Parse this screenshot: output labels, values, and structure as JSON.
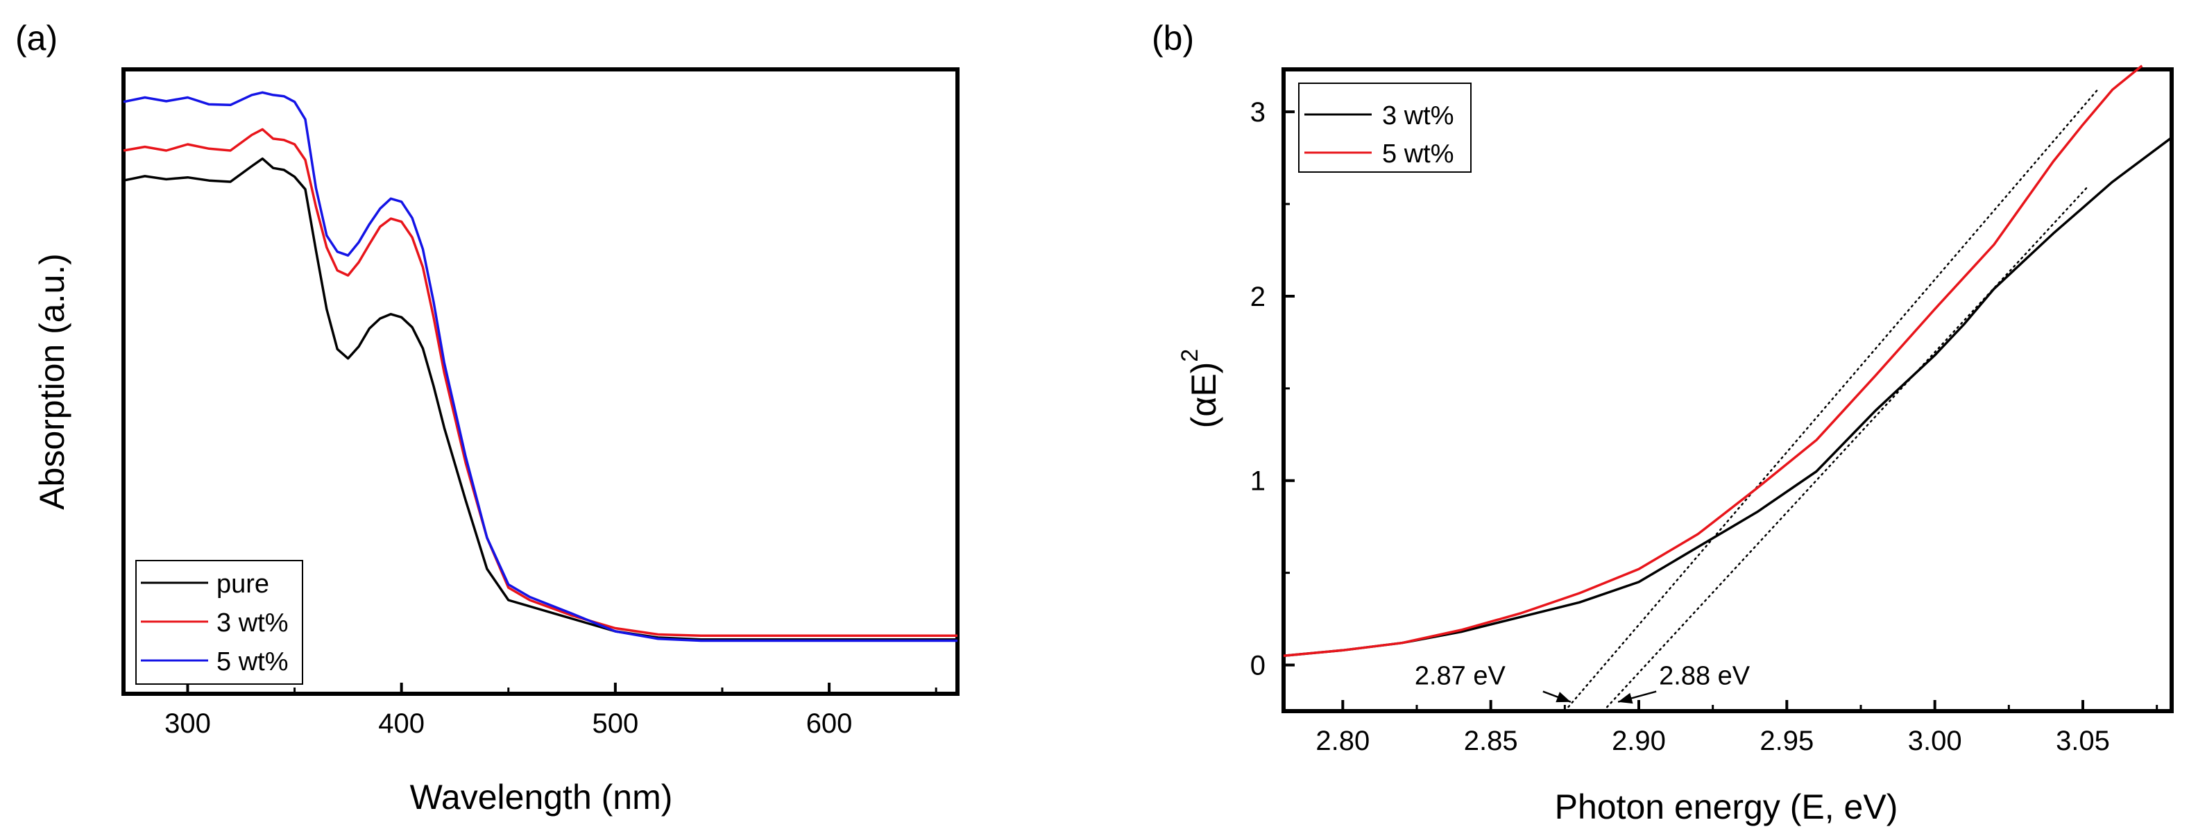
{
  "chart_data": [
    {
      "panel_label": "(a)",
      "type": "line",
      "xlabel": "Wavelength (nm)",
      "ylabel": "Absorption (a.u.)",
      "xlim": [
        270,
        660
      ],
      "ylim": [
        0,
        1
      ],
      "x_ticks": [
        300,
        400,
        500,
        600
      ],
      "x_tick_labels": [
        "300",
        "400",
        "500",
        "600"
      ],
      "y_ticks_labeled": false,
      "legend_position": "bottom-left",
      "series": [
        {
          "name": "pure",
          "color": "#000000",
          "x": [
            270,
            280,
            290,
            300,
            310,
            320,
            330,
            335,
            340,
            345,
            350,
            355,
            360,
            365,
            370,
            375,
            380,
            385,
            390,
            395,
            400,
            405,
            410,
            415,
            420,
            430,
            440,
            450,
            460,
            480,
            500,
            520,
            540,
            560,
            600,
            660
          ],
          "y": [
            0.822,
            0.829,
            0.824,
            0.827,
            0.822,
            0.82,
            0.845,
            0.857,
            0.842,
            0.839,
            0.828,
            0.808,
            0.71,
            0.616,
            0.552,
            0.537,
            0.556,
            0.585,
            0.601,
            0.608,
            0.603,
            0.587,
            0.553,
            0.493,
            0.426,
            0.31,
            0.2,
            0.15,
            0.14,
            0.12,
            0.1,
            0.09,
            0.087,
            0.087,
            0.087,
            0.087
          ]
        },
        {
          "name": "3 wt%",
          "color": "#e8151b",
          "x": [
            270,
            280,
            290,
            300,
            310,
            320,
            330,
            335,
            340,
            345,
            350,
            355,
            360,
            365,
            370,
            375,
            380,
            385,
            390,
            395,
            400,
            405,
            410,
            415,
            420,
            430,
            440,
            450,
            460,
            480,
            500,
            520,
            540,
            560,
            600,
            660
          ],
          "y": [
            0.87,
            0.876,
            0.87,
            0.88,
            0.873,
            0.87,
            0.895,
            0.904,
            0.889,
            0.887,
            0.88,
            0.855,
            0.78,
            0.715,
            0.678,
            0.67,
            0.691,
            0.72,
            0.748,
            0.761,
            0.756,
            0.731,
            0.683,
            0.603,
            0.514,
            0.37,
            0.25,
            0.17,
            0.15,
            0.125,
            0.105,
            0.095,
            0.093,
            0.093,
            0.093,
            0.093
          ]
        },
        {
          "name": "5 wt%",
          "color": "#1414e6",
          "x": [
            270,
            280,
            290,
            300,
            310,
            320,
            330,
            335,
            340,
            345,
            350,
            355,
            360,
            365,
            370,
            375,
            380,
            385,
            390,
            395,
            400,
            405,
            410,
            415,
            420,
            430,
            440,
            450,
            460,
            480,
            500,
            520,
            540,
            560,
            600,
            660
          ],
          "y": [
            0.948,
            0.955,
            0.949,
            0.955,
            0.944,
            0.943,
            0.959,
            0.963,
            0.959,
            0.957,
            0.948,
            0.92,
            0.81,
            0.734,
            0.708,
            0.702,
            0.723,
            0.752,
            0.777,
            0.793,
            0.788,
            0.762,
            0.712,
            0.628,
            0.53,
            0.38,
            0.25,
            0.175,
            0.155,
            0.128,
            0.1,
            0.088,
            0.085,
            0.085,
            0.085,
            0.085
          ]
        }
      ]
    },
    {
      "panel_label": "(b)",
      "type": "line",
      "xlabel": "Photon energy (E, eV)",
      "ylabel": "(αE)",
      "ylabel_superscript": "2",
      "xlim": [
        2.78,
        3.08
      ],
      "ylim": [
        -0.25,
        3.23
      ],
      "x_ticks": [
        2.8,
        2.85,
        2.9,
        2.95,
        3.0,
        3.05
      ],
      "x_tick_labels": [
        "2.80",
        "2.85",
        "2.90",
        "2.95",
        "3.00",
        "3.05"
      ],
      "y_ticks": [
        0,
        1,
        2,
        3
      ],
      "y_tick_labels": [
        "0",
        "1",
        "2",
        "3"
      ],
      "legend_position": "top-left",
      "series": [
        {
          "name": "3 wt%",
          "color": "#000000",
          "x": [
            2.78,
            2.8,
            2.82,
            2.84,
            2.86,
            2.88,
            2.9,
            2.92,
            2.94,
            2.96,
            2.98,
            3.0,
            3.01,
            3.02,
            3.04,
            3.05,
            3.06,
            3.08
          ],
          "y": [
            0.05,
            0.08,
            0.12,
            0.18,
            0.26,
            0.34,
            0.45,
            0.64,
            0.83,
            1.05,
            1.38,
            1.68,
            1.85,
            2.04,
            2.34,
            2.48,
            2.62,
            2.86
          ]
        },
        {
          "name": "5 wt%",
          "color": "#e8151b",
          "x": [
            2.78,
            2.8,
            2.82,
            2.84,
            2.86,
            2.88,
            2.9,
            2.92,
            2.94,
            2.96,
            2.98,
            3.0,
            3.02,
            3.04,
            3.05,
            3.06,
            3.07
          ],
          "y": [
            0.05,
            0.08,
            0.12,
            0.19,
            0.28,
            0.39,
            0.52,
            0.71,
            0.96,
            1.22,
            1.57,
            1.93,
            2.28,
            2.73,
            2.93,
            3.12,
            3.25
          ]
        }
      ],
      "fit_lines": [
        {
          "name": "3 wt% fit",
          "x": [
            2.888,
            3.052
          ],
          "y": [
            -0.25,
            2.6
          ]
        },
        {
          "name": "5 wt% fit",
          "x": [
            2.875,
            3.055
          ],
          "y": [
            -0.25,
            3.12
          ]
        }
      ],
      "annotations": [
        {
          "text": "2.87 eV",
          "points_to": [
            2.877,
            -0.2
          ]
        },
        {
          "text": "2.88 eV",
          "points_to": [
            2.893,
            -0.2
          ]
        }
      ]
    }
  ]
}
